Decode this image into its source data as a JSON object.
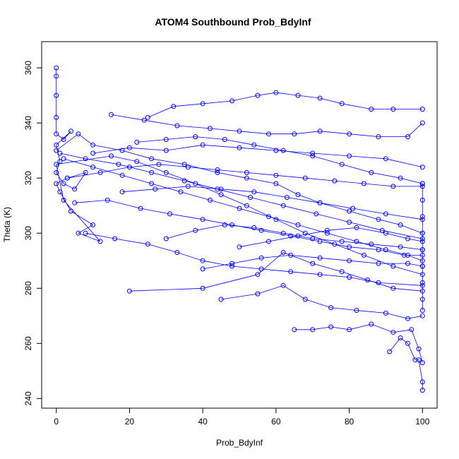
{
  "chart_data": {
    "type": "line",
    "title": "ATOM4 Southbound Prob_BdyInf",
    "xlabel": "Prob_BdyInf",
    "ylabel": "Theta (K)",
    "xlim": [
      -4,
      104
    ],
    "ylim": [
      236.5,
      369.5
    ],
    "xticks": [
      0,
      20,
      40,
      60,
      80,
      100
    ],
    "yticks": [
      240,
      260,
      280,
      300,
      320,
      340,
      360
    ],
    "grid": false,
    "legend": "none",
    "marker": "open-circle",
    "color": "#0000ff",
    "series": [
      {
        "values": [
          [
            0,
            360
          ],
          [
            0,
            357
          ],
          [
            0,
            350
          ],
          [
            0,
            342
          ],
          [
            0,
            336
          ],
          [
            2,
            334
          ],
          [
            4,
            337
          ],
          [
            0,
            332
          ],
          [
            1,
            326
          ],
          [
            0,
            322
          ],
          [
            2,
            318
          ],
          [
            5,
            316
          ],
          [
            8,
            322
          ],
          [
            3,
            320
          ],
          [
            0,
            318
          ],
          [
            1,
            315
          ],
          [
            4,
            308
          ],
          [
            10,
            303
          ],
          [
            6,
            300
          ],
          [
            12,
            297
          ],
          [
            2,
            312
          ],
          [
            0,
            325
          ],
          [
            15,
            328
          ],
          [
            22,
            326
          ],
          [
            30,
            322
          ],
          [
            38,
            318
          ],
          [
            45,
            314
          ],
          [
            52,
            310
          ],
          [
            60,
            305
          ],
          [
            68,
            300
          ],
          [
            76,
            296
          ],
          [
            84,
            292
          ],
          [
            92,
            288
          ],
          [
            100,
            285
          ]
        ]
      },
      {
        "values": [
          [
            0,
            330
          ],
          [
            6,
            336
          ],
          [
            10,
            332
          ],
          [
            18,
            330
          ],
          [
            26,
            327
          ],
          [
            35,
            325
          ],
          [
            44,
            322
          ],
          [
            52,
            320
          ],
          [
            60,
            318
          ],
          [
            66,
            314
          ],
          [
            72,
            311
          ],
          [
            80,
            308
          ],
          [
            88,
            305
          ],
          [
            94,
            303
          ],
          [
            100,
            300
          ]
        ]
      },
      {
        "values": [
          [
            20,
            279
          ],
          [
            40,
            280
          ],
          [
            55,
            285
          ],
          [
            62,
            293
          ],
          [
            70,
            289
          ],
          [
            78,
            286
          ],
          [
            85,
            283
          ],
          [
            92,
            280
          ],
          [
            100,
            279
          ]
        ]
      },
      {
        "values": [
          [
            25,
            342
          ],
          [
            32,
            346
          ],
          [
            40,
            347
          ],
          [
            48,
            348
          ],
          [
            55,
            350
          ],
          [
            60,
            351
          ],
          [
            66,
            350
          ],
          [
            72,
            349
          ],
          [
            78,
            347
          ],
          [
            86,
            345
          ],
          [
            92,
            345
          ],
          [
            100,
            345
          ]
        ]
      },
      {
        "values": [
          [
            15,
            343
          ],
          [
            24,
            341
          ],
          [
            33,
            339
          ],
          [
            42,
            338
          ],
          [
            50,
            337
          ],
          [
            58,
            336
          ],
          [
            65,
            336
          ],
          [
            72,
            337
          ],
          [
            80,
            336
          ],
          [
            88,
            335
          ],
          [
            96,
            335
          ],
          [
            100,
            340
          ]
        ]
      },
      {
        "values": [
          [
            2,
            327
          ],
          [
            10,
            324
          ],
          [
            18,
            321
          ],
          [
            26,
            318
          ],
          [
            34,
            315
          ],
          [
            42,
            312
          ],
          [
            50,
            309
          ],
          [
            58,
            306
          ],
          [
            66,
            303
          ],
          [
            74,
            300
          ],
          [
            82,
            297
          ],
          [
            90,
            294
          ],
          [
            96,
            292
          ],
          [
            100,
            290
          ]
        ]
      },
      {
        "values": [
          [
            45,
            276
          ],
          [
            55,
            278
          ],
          [
            62,
            281
          ],
          [
            68,
            276
          ],
          [
            75,
            273
          ],
          [
            82,
            272
          ],
          [
            90,
            271
          ],
          [
            96,
            269
          ],
          [
            100,
            270
          ]
        ]
      },
      {
        "values": [
          [
            65,
            265
          ],
          [
            70,
            265
          ],
          [
            75,
            266
          ],
          [
            80,
            265
          ],
          [
            86,
            267
          ],
          [
            92,
            264
          ],
          [
            97,
            265
          ],
          [
            99,
            258
          ],
          [
            100,
            253
          ]
        ]
      },
      {
        "values": [
          [
            91,
            257
          ],
          [
            94,
            262
          ],
          [
            96,
            260
          ],
          [
            98,
            254
          ],
          [
            99,
            254
          ],
          [
            100,
            246
          ],
          [
            100,
            243
          ]
        ]
      },
      {
        "values": [
          [
            5,
            311
          ],
          [
            14,
            312
          ],
          [
            23,
            309
          ],
          [
            31,
            307
          ],
          [
            40,
            305
          ],
          [
            48,
            303
          ],
          [
            56,
            301
          ],
          [
            64,
            299
          ],
          [
            72,
            297
          ],
          [
            80,
            295
          ],
          [
            88,
            294
          ],
          [
            95,
            292
          ],
          [
            100,
            292
          ]
        ]
      },
      {
        "values": [
          [
            8,
            300
          ],
          [
            16,
            298
          ],
          [
            25,
            296
          ],
          [
            33,
            293
          ],
          [
            40,
            290
          ],
          [
            48,
            288
          ],
          [
            56,
            287
          ],
          [
            64,
            286
          ],
          [
            72,
            285
          ],
          [
            80,
            284
          ],
          [
            88,
            282
          ],
          [
            100,
            281
          ]
        ]
      },
      {
        "values": [
          [
            3,
            320
          ],
          [
            12,
            322
          ],
          [
            20,
            324
          ],
          [
            28,
            325
          ],
          [
            36,
            324
          ],
          [
            44,
            323
          ],
          [
            52,
            322
          ],
          [
            60,
            321
          ],
          [
            68,
            320
          ],
          [
            76,
            319
          ],
          [
            84,
            318
          ],
          [
            92,
            317
          ],
          [
            100,
            317
          ]
        ]
      },
      {
        "values": [
          [
            10,
            329
          ],
          [
            20,
            331
          ],
          [
            30,
            330
          ],
          [
            40,
            332
          ],
          [
            50,
            331
          ],
          [
            60,
            330
          ],
          [
            70,
            329
          ],
          [
            80,
            328
          ],
          [
            90,
            327
          ],
          [
            100,
            324
          ]
        ]
      },
      {
        "values": [
          [
            30,
            298
          ],
          [
            38,
            301
          ],
          [
            46,
            303
          ],
          [
            54,
            302
          ],
          [
            62,
            300
          ],
          [
            70,
            298
          ],
          [
            78,
            297
          ],
          [
            86,
            296
          ],
          [
            94,
            295
          ],
          [
            100,
            294
          ]
        ]
      },
      {
        "values": [
          [
            1,
            329
          ],
          [
            8,
            327
          ],
          [
            17,
            325
          ],
          [
            26,
            322
          ],
          [
            35,
            319
          ],
          [
            44,
            316
          ],
          [
            53,
            313
          ],
          [
            62,
            310
          ],
          [
            71,
            307
          ],
          [
            80,
            304
          ],
          [
            89,
            301
          ],
          [
            100,
            298
          ]
        ]
      },
      {
        "values": [
          [
            40,
            287
          ],
          [
            48,
            289
          ],
          [
            56,
            291
          ],
          [
            64,
            292
          ],
          [
            72,
            291
          ],
          [
            80,
            290
          ],
          [
            88,
            289
          ],
          [
            96,
            289
          ],
          [
            100,
            288
          ]
        ]
      },
      {
        "values": [
          [
            100,
            318
          ],
          [
            100,
            312
          ],
          [
            100,
            306
          ],
          [
            100,
            300
          ],
          [
            100,
            294
          ],
          [
            100,
            288
          ],
          [
            100,
            282
          ],
          [
            100,
            276
          ],
          [
            100,
            272
          ]
        ]
      },
      {
        "values": [
          [
            18,
            315
          ],
          [
            27,
            316
          ],
          [
            36,
            317
          ],
          [
            45,
            316
          ],
          [
            54,
            315
          ],
          [
            63,
            313
          ],
          [
            72,
            311
          ],
          [
            81,
            309
          ],
          [
            90,
            307
          ],
          [
            100,
            305
          ]
        ]
      },
      {
        "values": [
          [
            22,
            333
          ],
          [
            30,
            334
          ],
          [
            38,
            335
          ],
          [
            46,
            334
          ],
          [
            54,
            332
          ],
          [
            62,
            330
          ],
          [
            70,
            328
          ],
          [
            78,
            325
          ],
          [
            86,
            322
          ],
          [
            94,
            320
          ],
          [
            100,
            318
          ]
        ]
      },
      {
        "values": [
          [
            50,
            295
          ],
          [
            58,
            297
          ],
          [
            66,
            299
          ],
          [
            74,
            301
          ],
          [
            82,
            302
          ],
          [
            90,
            300
          ],
          [
            96,
            298
          ],
          [
            100,
            297
          ]
        ]
      }
    ]
  }
}
